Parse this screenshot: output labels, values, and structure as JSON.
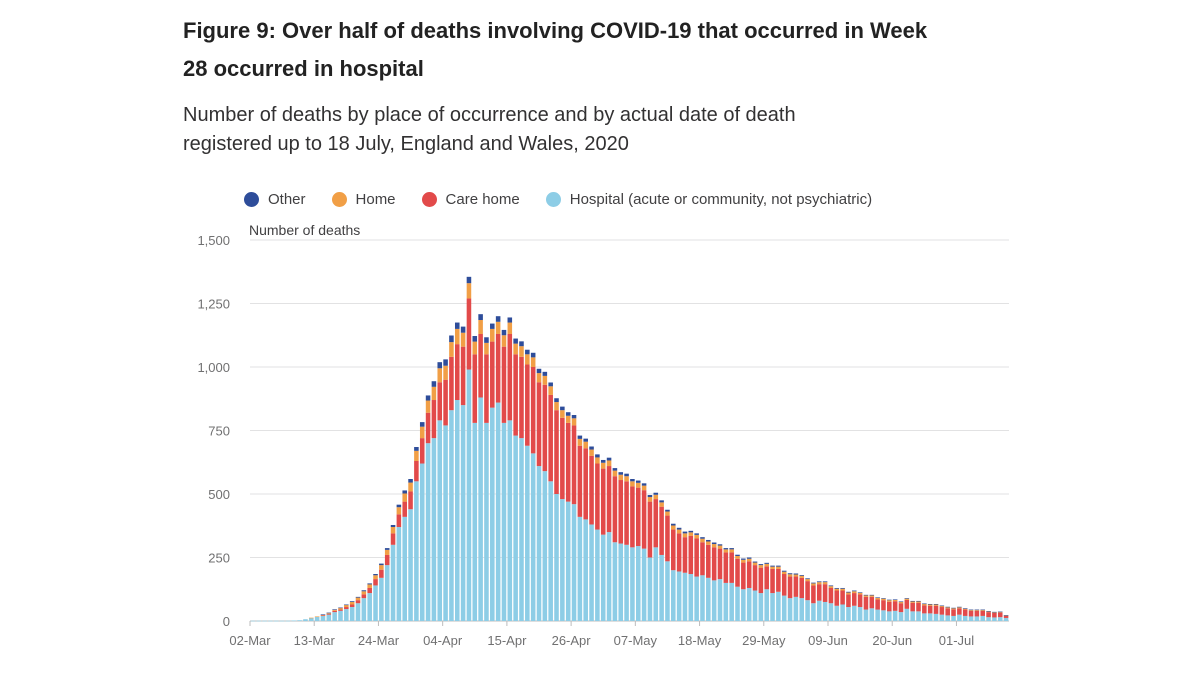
{
  "chart_data": {
    "type": "bar",
    "stacked": true,
    "title": "Figure 9: Over half of deaths involving COVID-19 that occurred in Week 28 occurred in hospital",
    "subtitle": "Number of deaths by place of occurrence and by actual date of death registered up to 18 July, England and Wales, 2020",
    "ylabel": "Number of deaths",
    "xlabel": "",
    "ylim": [
      0,
      1500
    ],
    "yticks": [
      0,
      250,
      500,
      750,
      1000,
      1250,
      1500
    ],
    "x_start_date": "2020-03-02",
    "x_tick_labels": [
      "02-Mar",
      "13-Mar",
      "24-Mar",
      "04-Apr",
      "15-Apr",
      "26-Apr",
      "07-May",
      "18-May",
      "29-May",
      "09-Jun",
      "20-Jun",
      "01-Jul"
    ],
    "grid": true,
    "legend_position": "top",
    "legend": [
      {
        "name": "Other",
        "color": "#2E4D9A"
      },
      {
        "name": "Home",
        "color": "#F19F46"
      },
      {
        "name": "Care home",
        "color": "#E24A4A"
      },
      {
        "name": "Hospital (acute or community, not psychiatric)",
        "color": "#8DCDE6"
      }
    ],
    "series": [
      {
        "name": "Hospital (acute or community, not psychiatric)",
        "color": "#8DCDE6",
        "values": [
          1,
          1,
          1,
          1,
          1,
          1,
          1,
          2,
          3,
          7,
          12,
          16,
          20,
          25,
          35,
          40,
          47,
          55,
          70,
          90,
          110,
          140,
          170,
          220,
          300,
          370,
          410,
          440,
          550,
          620,
          700,
          720,
          790,
          770,
          830,
          870,
          850,
          990,
          780,
          880,
          780,
          840,
          860,
          780,
          790,
          730,
          720,
          690,
          660,
          610,
          590,
          550,
          500,
          480,
          470,
          460,
          410,
          400,
          380,
          360,
          340,
          350,
          310,
          305,
          300,
          290,
          295,
          285,
          250,
          290,
          260,
          235,
          200,
          195,
          190,
          185,
          175,
          180,
          170,
          160,
          165,
          150,
          150,
          135,
          125,
          130,
          120,
          110,
          125,
          110,
          115,
          100,
          90,
          95,
          90,
          82,
          70,
          80,
          75,
          70,
          60,
          65,
          55,
          60,
          55,
          45,
          50,
          45,
          42,
          38,
          40,
          35,
          48,
          38,
          38,
          30,
          30,
          28,
          25,
          22,
          20,
          25,
          20,
          18,
          18,
          20,
          15,
          14,
          15,
          12
        ]
      },
      {
        "name": "Care home",
        "color": "#E24A4A",
        "values": [
          0,
          0,
          0,
          0,
          0,
          0,
          0,
          0,
          0,
          0,
          0,
          0,
          2,
          3,
          5,
          5,
          8,
          10,
          12,
          15,
          20,
          25,
          32,
          40,
          45,
          50,
          60,
          70,
          80,
          100,
          120,
          150,
          150,
          180,
          210,
          220,
          230,
          280,
          270,
          250,
          270,
          260,
          270,
          300,
          340,
          320,
          320,
          320,
          340,
          330,
          340,
          340,
          330,
          320,
          310,
          310,
          280,
          280,
          270,
          260,
          260,
          260,
          260,
          250,
          250,
          240,
          230,
          230,
          220,
          190,
          190,
          180,
          160,
          150,
          140,
          150,
          150,
          130,
          130,
          130,
          120,
          120,
          120,
          110,
          105,
          105,
          100,
          100,
          90,
          95,
          90,
          85,
          85,
          80,
          80,
          75,
          70,
          65,
          70,
          60,
          60,
          55,
          50,
          50,
          50,
          50,
          45,
          40,
          40,
          38,
          38,
          35,
          35,
          34,
          34,
          32,
          30,
          32,
          30,
          28,
          26,
          25,
          25,
          22,
          22,
          20,
          20,
          18,
          18,
          8
        ]
      },
      {
        "name": "Home",
        "color": "#F19F46",
        "values": [
          0,
          0,
          0,
          0,
          0,
          0,
          0,
          0,
          0,
          0,
          1,
          2,
          3,
          4,
          5,
          6,
          8,
          10,
          10,
          12,
          14,
          15,
          18,
          20,
          25,
          28,
          32,
          35,
          40,
          45,
          48,
          52,
          55,
          55,
          58,
          60,
          55,
          60,
          50,
          55,
          45,
          50,
          48,
          45,
          45,
          42,
          42,
          40,
          38,
          36,
          35,
          34,
          32,
          30,
          28,
          28,
          27,
          26,
          25,
          24,
          23,
          22,
          22,
          21,
          20,
          20,
          19,
          18,
          18,
          17,
          17,
          16,
          16,
          15,
          15,
          14,
          14,
          14,
          13,
          13,
          12,
          12,
          12,
          11,
          11,
          10,
          10,
          10,
          10,
          9,
          9,
          9,
          9,
          8,
          8,
          8,
          8,
          8,
          8,
          7,
          7,
          7,
          7,
          7,
          6,
          6,
          6,
          6,
          6,
          6,
          5,
          5,
          5,
          5,
          5,
          5,
          5,
          5,
          4,
          4,
          4,
          4,
          4,
          4,
          4,
          4,
          3,
          3,
          3,
          2
        ]
      },
      {
        "name": "Other",
        "color": "#2E4D9A",
        "values": [
          0,
          0,
          0,
          0,
          0,
          0,
          0,
          0,
          0,
          0,
          0,
          0,
          1,
          1,
          1,
          2,
          2,
          3,
          3,
          4,
          4,
          5,
          6,
          7,
          8,
          10,
          12,
          14,
          15,
          18,
          20,
          22,
          24,
          25,
          26,
          25,
          24,
          25,
          22,
          23,
          22,
          21,
          22,
          21,
          20,
          20,
          19,
          18,
          18,
          17,
          16,
          15,
          15,
          14,
          14,
          13,
          13,
          12,
          12,
          12,
          11,
          11,
          10,
          10,
          10,
          9,
          9,
          9,
          8,
          8,
          8,
          7,
          7,
          7,
          7,
          6,
          6,
          6,
          6,
          6,
          5,
          5,
          5,
          5,
          5,
          5,
          4,
          4,
          4,
          4,
          4,
          4,
          4,
          4,
          3,
          3,
          3,
          3,
          3,
          3,
          3,
          3,
          3,
          3,
          2,
          2,
          2,
          2,
          2,
          2,
          2,
          2,
          2,
          2,
          2,
          2,
          2,
          2,
          2,
          2,
          2,
          2,
          1,
          1,
          1,
          1,
          1,
          1,
          1,
          1
        ]
      }
    ]
  }
}
